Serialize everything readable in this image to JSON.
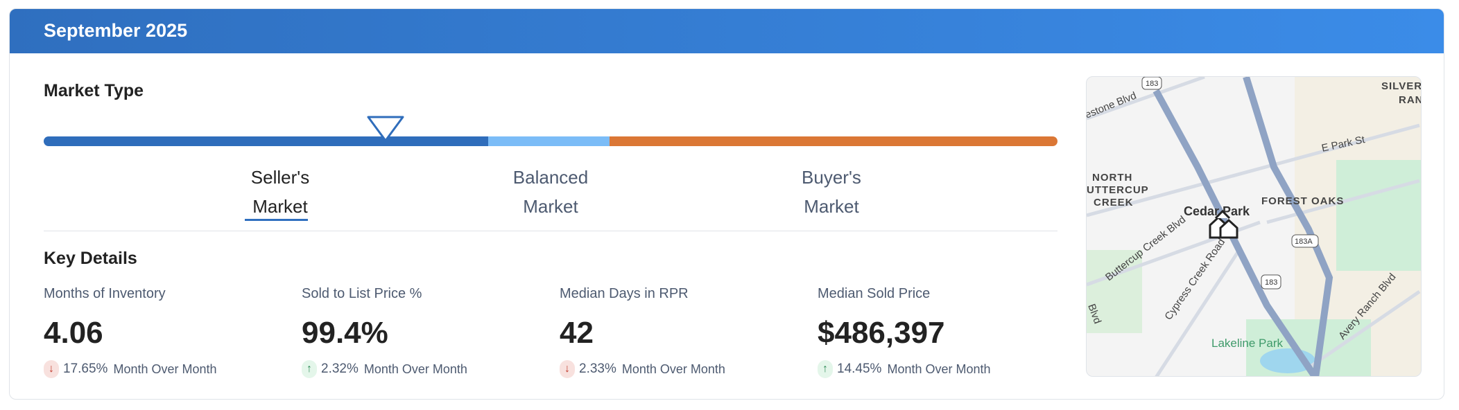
{
  "header": {
    "title": "September 2025"
  },
  "market_type": {
    "title": "Market Type",
    "indicator_position_percent": 33.7,
    "segments": [
      {
        "line1": "Seller's",
        "line2": "Market",
        "color": "#2f6dbb",
        "active": true
      },
      {
        "line1": "Balanced",
        "line2": "Market",
        "color": "#7bbcf7",
        "active": false
      },
      {
        "line1": "Buyer's",
        "line2": "Market",
        "color": "#db7735",
        "active": false
      }
    ]
  },
  "key_details": {
    "title": "Key Details",
    "metrics": [
      {
        "label": "Months of Inventory",
        "value": "4.06",
        "direction": "down",
        "change": "17.65%",
        "period": "Month Over Month"
      },
      {
        "label": "Sold to List Price %",
        "value": "99.4%",
        "direction": "up",
        "change": "2.32%",
        "period": "Month Over Month"
      },
      {
        "label": "Median Days in RPR",
        "value": "42",
        "direction": "down",
        "change": "2.33%",
        "period": "Month Over Month"
      },
      {
        "label": "Median Sold Price",
        "value": "$486,397",
        "direction": "up",
        "change": "14.45%",
        "period": "Month Over Month"
      }
    ]
  },
  "map": {
    "labels": [
      "SILVERA",
      "RANCH",
      "estone Blvd",
      "E Park St",
      "NORTH",
      "UTTERCUP",
      "CREEK",
      "FOREST OAKS",
      "Cedar Park",
      "Buttercup Creek Blvd",
      "Cypress Creek Road",
      "Avery Ranch Blvd",
      "Lakeline Park",
      "Blvd"
    ],
    "shields": [
      "183",
      "183A",
      "183"
    ],
    "marker_icon": "home-pin-icon"
  }
}
